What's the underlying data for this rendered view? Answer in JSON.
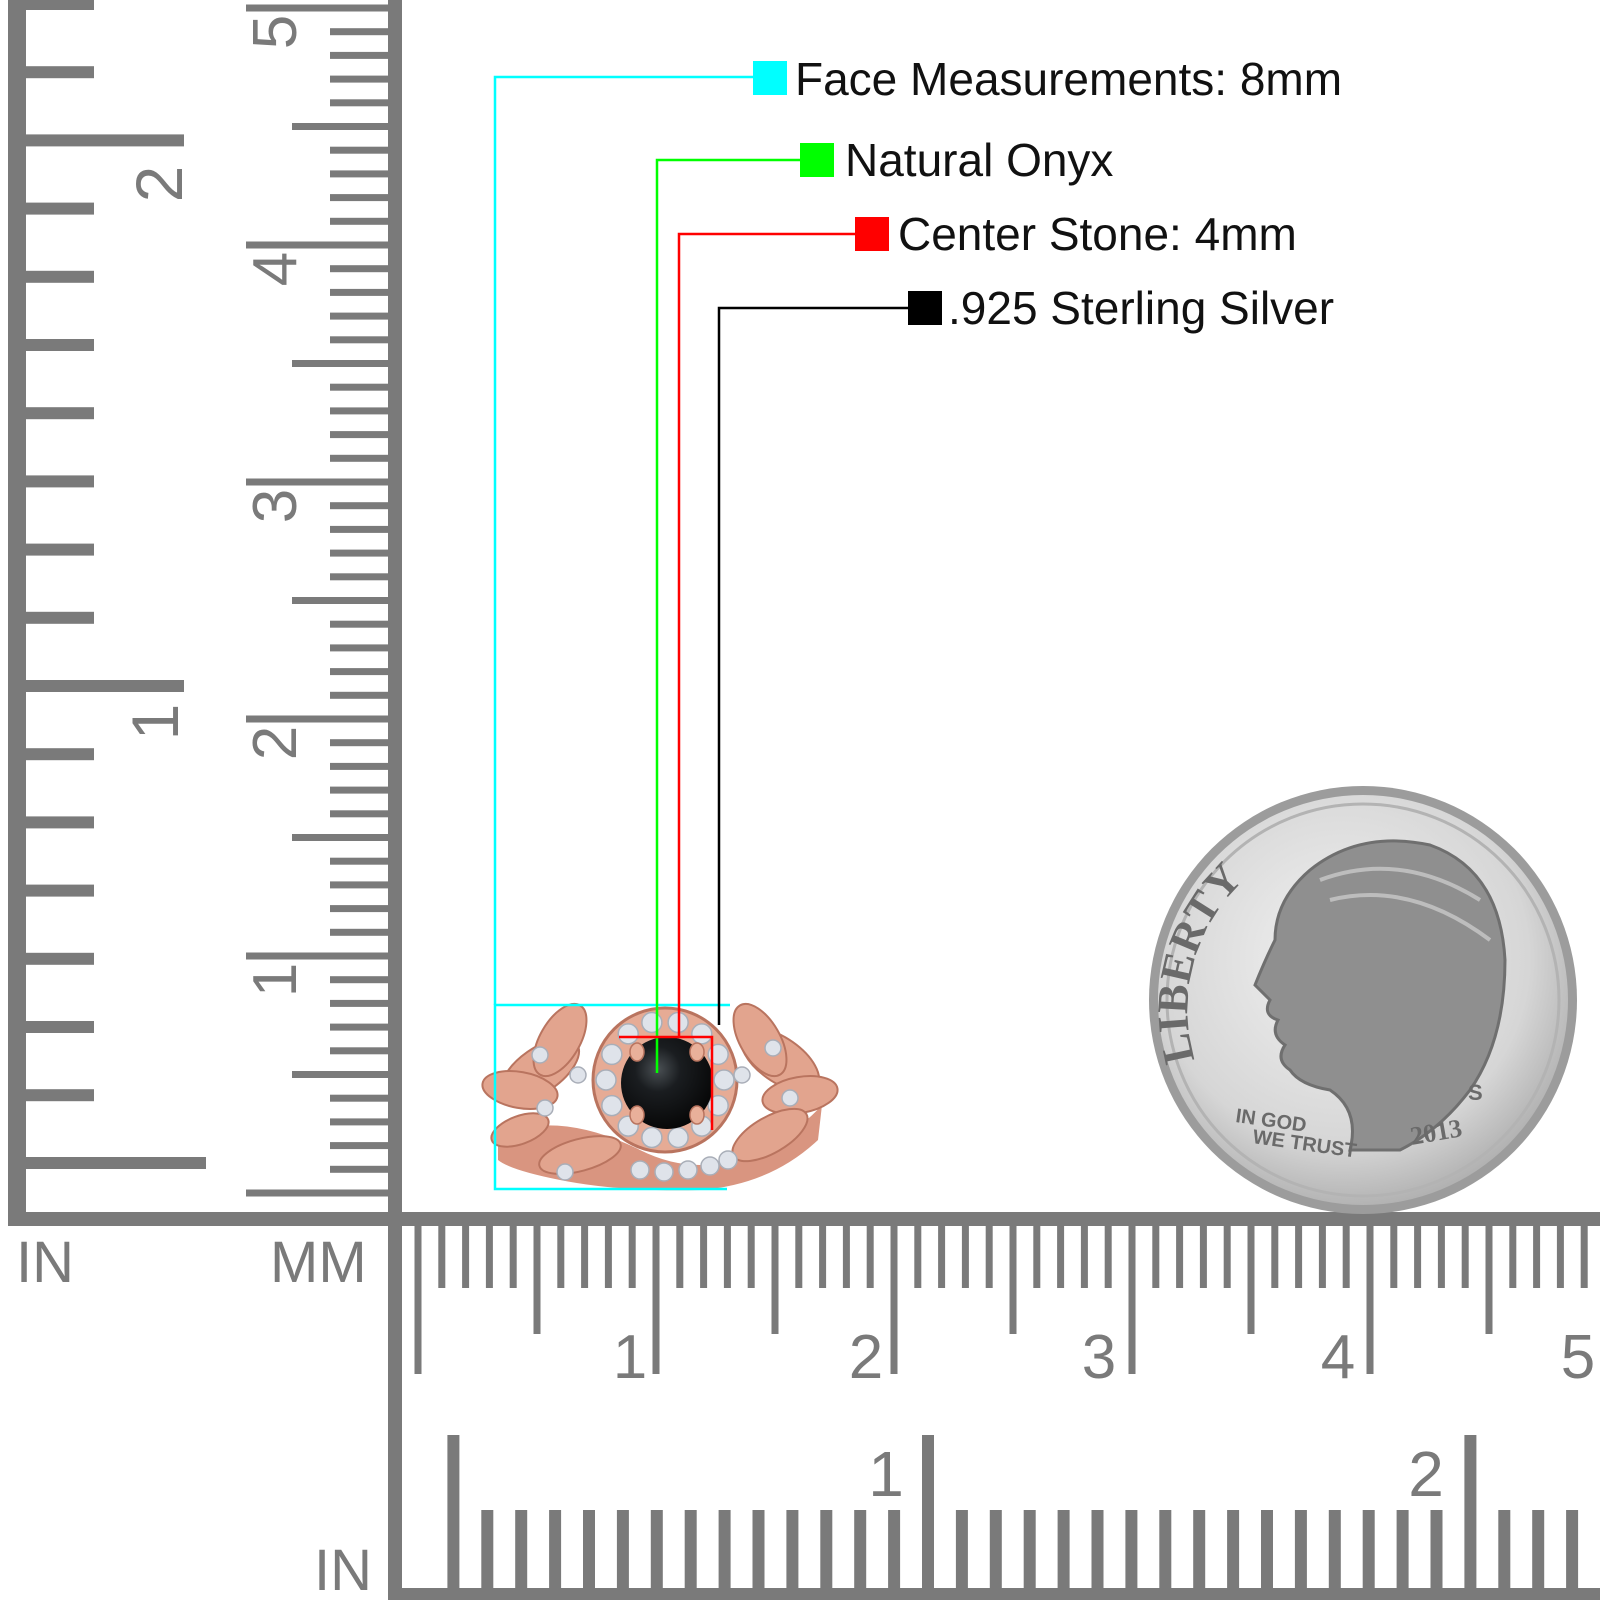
{
  "callouts": [
    {
      "label": "Face Measurements: 8mm",
      "color": "#00FFFF"
    },
    {
      "label": "Natural Onyx",
      "color": "#00FF00"
    },
    {
      "label": "Center Stone: 4mm",
      "color": "#FF0000"
    },
    {
      "label": ".925 Sterling Silver",
      "color": "#000000"
    }
  ],
  "rulers": {
    "unit_labels": {
      "in_top": "IN",
      "mm": "MM",
      "in_bottom": "IN"
    },
    "vertical": {
      "inch_labels": [
        "1",
        "2"
      ],
      "cm_labels": [
        "1",
        "2",
        "3",
        "4",
        "5"
      ]
    },
    "horizontal": {
      "cm_labels": [
        "1",
        "2",
        "3",
        "4",
        "5"
      ],
      "inch_labels": [
        "1",
        "2"
      ]
    }
  },
  "coin": {
    "legend": "LIBERTY",
    "motto_line1": "IN GOD",
    "motto_line2": "WE TRUST",
    "year": "2013",
    "mint_mark": "S"
  },
  "colors": {
    "ruler": "#7a7a7a",
    "ring": "#e2a48e",
    "ring_dark": "#b9745f",
    "stone": "#121416",
    "coin": "#c9c9c9"
  }
}
